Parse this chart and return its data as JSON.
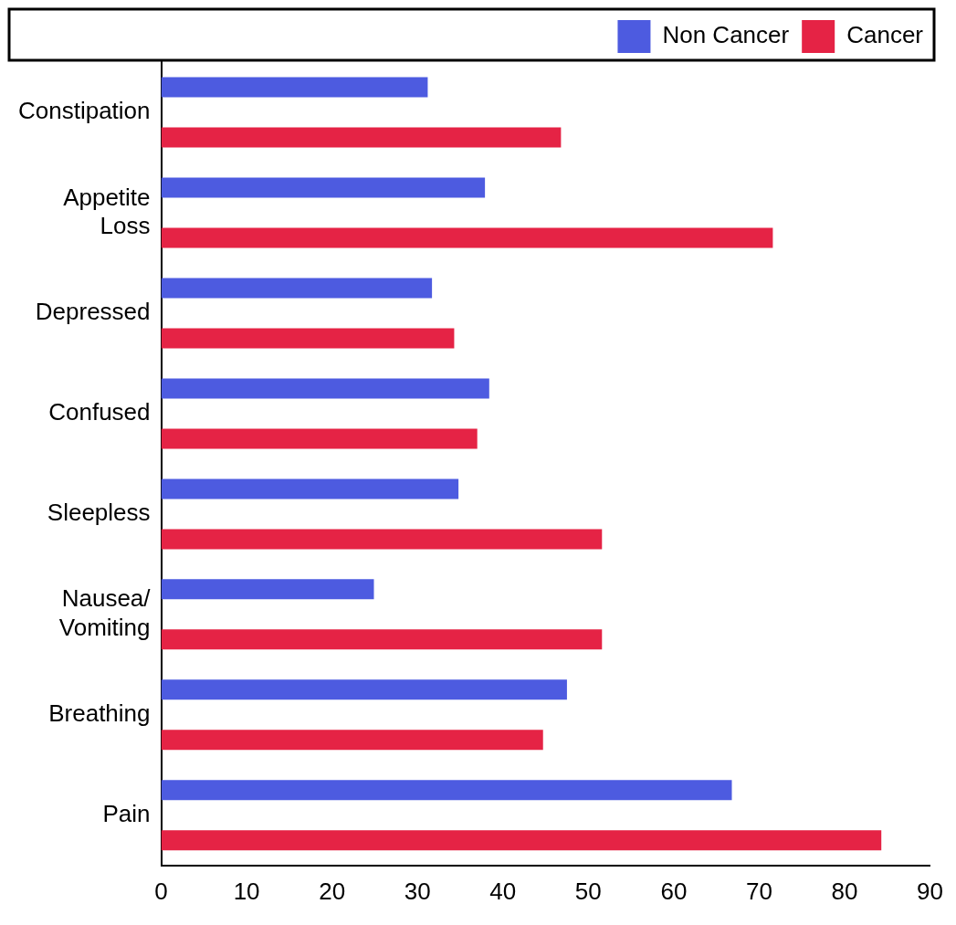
{
  "chart_data": {
    "type": "bar",
    "orientation": "horizontal",
    "categories": [
      "Constipation",
      "Appetite Loss",
      "Depressed",
      "Confused",
      "Sleepless",
      "Nausea/Vomiting",
      "Breathing",
      "Pain"
    ],
    "series": [
      {
        "name": "Non Cancer",
        "color": "#4d5be0",
        "values": [
          31.2,
          37.9,
          31.7,
          38.4,
          34.8,
          24.9,
          47.5,
          66.8
        ]
      },
      {
        "name": "Cancer",
        "color": "#e52345",
        "values": [
          46.8,
          71.6,
          34.3,
          37.0,
          51.6,
          51.6,
          44.7,
          84.3
        ]
      }
    ],
    "xlim": [
      0,
      90
    ],
    "xticks": [
      0,
      10,
      20,
      30,
      40,
      50,
      60,
      70,
      80,
      90
    ],
    "grid": false,
    "legend": "top right"
  }
}
